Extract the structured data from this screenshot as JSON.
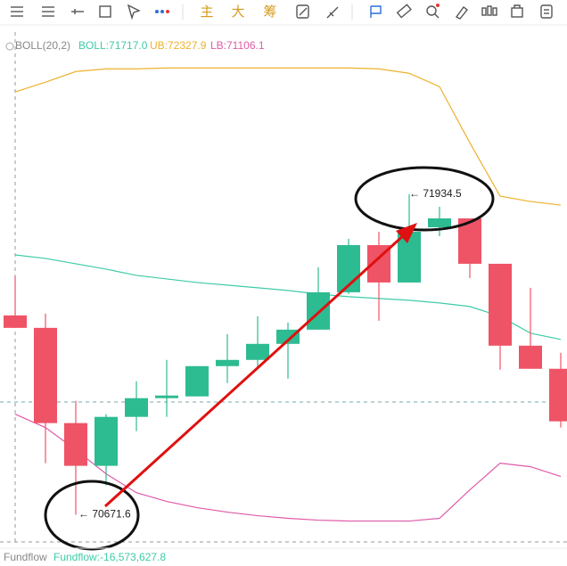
{
  "toolbar": {
    "buttons": [
      "主",
      "大",
      "筹"
    ]
  },
  "chart_data": {
    "type": "candlestick",
    "indicator_name": "BOLL(20,2)",
    "boll_label": "BOLL:71717.0",
    "ub_label": "UB:72327.9",
    "lb_label": "LB:71106.1",
    "footer_name": "Fundflow",
    "footer_value": "Fundflow:-16,573,627.8",
    "categories": [
      null,
      null,
      null,
      null,
      null,
      null,
      null,
      null,
      null,
      null,
      null,
      null,
      null,
      null,
      null,
      null,
      null,
      null,
      null
    ],
    "open": [
      71457.4,
      71408.3,
      71033.0,
      70864.6,
      71057.5,
      71131.2,
      71138.2,
      71257.5,
      71282.0,
      71345.2,
      71401.3,
      71548.6,
      71734.5,
      71587.2,
      71804.7,
      71839.8,
      71660.9,
      71338.1,
      71247.0
    ],
    "high": [
      71611.8,
      71464.4,
      71120.6,
      71068.0,
      71197.8,
      71282.0,
      71257.5,
      71383.7,
      71453.9,
      71429.4,
      71646.8,
      71759.1,
      71787.2,
      71934.5,
      71885.4,
      71839.8,
      71660.9,
      71566.2,
      71310.1
    ],
    "low": [
      71408.3,
      70875.1,
      70671.6,
      70787.4,
      71001.4,
      71057.5,
      71138.2,
      71190.8,
      71254.0,
      71208.3,
      71401.3,
      71541.6,
      71436.4,
      71587.2,
      71769.6,
      71604.7,
      71243.4,
      71247.0,
      71015.4
    ],
    "close": [
      71408.3,
      71033.0,
      70864.6,
      71057.5,
      71131.2,
      71141.7,
      71257.5,
      71282.0,
      71345.2,
      71401.3,
      71548.6,
      71734.5,
      71587.2,
      71787.2,
      71839.8,
      71660.9,
      71338.1,
      71247.0,
      71040.0
    ],
    "up_color": "#2dbb92",
    "down_color": "#ef5366",
    "series": [
      {
        "name": "UB",
        "color": "#ecb22e",
        "values": [
          72337.9,
          72376.5,
          72418.6,
          72429.1,
          72429.1,
          72432.6,
          72432.6,
          72432.6,
          72432.6,
          72432.6,
          72432.6,
          72432.6,
          72429.1,
          72411.6,
          72358.9,
          72137.9,
          71927.5,
          71906.4,
          71892.4
        ]
      },
      {
        "name": "BOLL",
        "color": "#3fcba8",
        "values": [
          71695.9,
          71681.9,
          71660.9,
          71639.8,
          71615.3,
          71601.2,
          71587.2,
          71576.7,
          71566.2,
          71555.6,
          71541.6,
          71531.1,
          71524.1,
          71517.0,
          71506.5,
          71492.5,
          71453.9,
          71387.3,
          71362.7
        ]
      },
      {
        "name": "LB",
        "color": "#e05aa8",
        "values": [
          71068.0,
          71015.4,
          70927.7,
          70832.9,
          70758.8,
          70724.2,
          70699.6,
          70682.1,
          70668.1,
          70657.6,
          70650.5,
          70647.0,
          70647.0,
          70647.0,
          70657.6,
          70769.8,
          70875.1,
          70861.1,
          70822.5
        ]
      }
    ],
    "annotations": [
      {
        "text": "← 71934.5",
        "value": 71934.5
      },
      {
        "text": "← 70671.6",
        "value": 70671.6
      }
    ],
    "ylim": [
      70540,
      72560
    ]
  }
}
